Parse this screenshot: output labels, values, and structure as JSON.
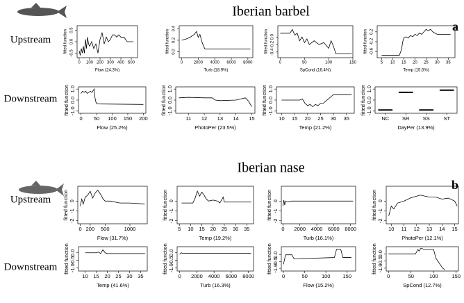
{
  "figures": [
    {
      "species": "Iberian barbel",
      "letter": "a",
      "rows": [
        "Upstream",
        "Downstream"
      ]
    },
    {
      "species": "Iberian nase",
      "letter": "b",
      "rows": [
        "Upstream",
        "Downstream"
      ]
    }
  ],
  "chart_data": [
    {
      "type": "line",
      "ylabel": "fitted function",
      "xlabel": "Flow (24.3%)",
      "xlim": [
        -20,
        560
      ],
      "xticks": [
        0,
        100,
        200,
        300,
        400,
        500
      ],
      "ylim": [
        -0.7,
        0.7
      ],
      "yticks": [
        -0.5,
        {
          "value": 0,
          "label": "0.0"
        },
        0.5
      ],
      "x": [
        0,
        10,
        20,
        30,
        40,
        50,
        60,
        70,
        80,
        90,
        100,
        120,
        140,
        160,
        180,
        200,
        220,
        240,
        260,
        280,
        300,
        320,
        340,
        360,
        380,
        400,
        430,
        460,
        520
      ],
      "values": [
        -0.4,
        -0.6,
        -0.3,
        -0.5,
        -0.2,
        -0.5,
        0.1,
        -0.3,
        0.2,
        -0.1,
        -0.2,
        0.0,
        -0.3,
        -0.1,
        -0.5,
        0.1,
        0.4,
        -0.1,
        0.2,
        0.0,
        0.1,
        0.3,
        0.3,
        0.2,
        0.3,
        0.2,
        0.2,
        0.0,
        0.0
      ]
    },
    {
      "type": "line",
      "ylabel": "fitted function",
      "xlabel": "Turb (18.9%)",
      "xlim": [
        -300,
        8600
      ],
      "xticks": [
        0,
        2000,
        4000,
        6000,
        8000
      ],
      "ylim": [
        -0.1,
        0.45
      ],
      "yticks": [
        {
          "value": 0,
          "label": "0.0"
        },
        0.2,
        0.4
      ],
      "x": [
        0,
        500,
        1000,
        1500,
        1800,
        2000,
        2200,
        2500,
        2800,
        8300
      ],
      "values": [
        0.2,
        0.22,
        0.25,
        0.3,
        0.35,
        0.25,
        0.3,
        0.15,
        0.05,
        0.05
      ]
    },
    {
      "type": "line",
      "ylabel": "fitted function",
      "xlabel": "SpCond (16.4%)",
      "xlim": [
        -5,
        150
      ],
      "xticks": [
        0,
        50,
        100,
        150
      ],
      "ylim": [
        -0.55,
        0.3
      ],
      "yticks": [
        -0.4,
        -0.2,
        {
          "value": 0,
          "label": "0.0"
        }
      ],
      "x": [
        0,
        20,
        25,
        30,
        35,
        40,
        45,
        50,
        55,
        60,
        70,
        80,
        90,
        100,
        105,
        110,
        115,
        148
      ],
      "values": [
        0.1,
        0.1,
        0.2,
        0.05,
        0.1,
        -0.1,
        0.0,
        -0.15,
        -0.05,
        -0.2,
        -0.1,
        -0.2,
        -0.15,
        -0.3,
        -0.1,
        -0.25,
        -0.45,
        -0.45
      ]
    },
    {
      "type": "line",
      "ylabel": "fitted function",
      "xlabel": "Temp (15.5%)",
      "xlim": [
        3,
        38
      ],
      "xticks": [
        5,
        10,
        15,
        20,
        25,
        30,
        35
      ],
      "ylim": [
        -0.85,
        0.45
      ],
      "yticks": [
        -0.6,
        -0.2,
        0.2
      ],
      "x": [
        5,
        13,
        14,
        14.5,
        15,
        16,
        17,
        18,
        19,
        20,
        21,
        22,
        23,
        24,
        25,
        26,
        27,
        28,
        29,
        30,
        36
      ],
      "values": [
        -0.75,
        -0.75,
        -0.5,
        -0.2,
        -0.05,
        0.0,
        -0.05,
        0.05,
        0.0,
        0.1,
        0.05,
        0.15,
        0.1,
        0.2,
        0.3,
        0.25,
        0.3,
        0.2,
        0.15,
        0.1,
        0.1
      ]
    },
    {
      "type": "line",
      "ylabel": "fitted function",
      "xlabel": "Flow (25.2%)",
      "xlim": [
        -8,
        208
      ],
      "xticks": [
        0,
        50,
        100,
        150,
        200
      ],
      "ylim": [
        -1.2,
        1.2
      ],
      "yticks": [
        {
          "value": -1,
          "label": "-1.0"
        },
        {
          "value": 0,
          "label": "0.0"
        },
        {
          "value": 1,
          "label": "1.0"
        }
      ],
      "x": [
        0,
        5,
        10,
        15,
        20,
        25,
        30,
        35,
        40,
        42,
        45,
        48,
        52,
        200
      ],
      "values": [
        0.6,
        0.8,
        0.7,
        0.8,
        0.6,
        0.7,
        0.8,
        0.7,
        0.9,
        1.0,
        0.2,
        -0.2,
        -0.35,
        -0.4
      ]
    },
    {
      "type": "line",
      "ylabel": "fitted function",
      "xlabel": "PhotoPer (23.5%)",
      "xlim": [
        10.2,
        15.2
      ],
      "xticks": [
        11,
        12,
        13,
        14,
        15
      ],
      "ylim": [
        -1.2,
        1.2
      ],
      "yticks": [
        {
          "value": -1,
          "label": "-1.0"
        },
        {
          "value": 0,
          "label": "0.0"
        },
        {
          "value": 1,
          "label": "1.0"
        }
      ],
      "x": [
        10.4,
        11,
        12,
        12.5,
        12.7,
        13,
        14,
        14.3,
        14.6,
        14.8,
        15
      ],
      "values": [
        0.2,
        0.25,
        0.2,
        0.2,
        0.0,
        -0.05,
        0.0,
        0.1,
        0.2,
        -0.1,
        -0.6
      ]
    },
    {
      "type": "line",
      "ylabel": "fitted function",
      "xlabel": "Temp (21.2%)",
      "xlim": [
        8,
        38
      ],
      "xticks": [
        10,
        15,
        20,
        25,
        30,
        35
      ],
      "ylim": [
        -1.2,
        1.2
      ],
      "yticks": [
        {
          "value": -1,
          "label": "-1.0"
        },
        {
          "value": 0,
          "label": "0.0"
        },
        {
          "value": 1,
          "label": "1.0"
        }
      ],
      "x": [
        10,
        17,
        18,
        19,
        20,
        21,
        22,
        23,
        24,
        25,
        26,
        27,
        28,
        29,
        30,
        37
      ],
      "values": [
        0,
        0,
        0.1,
        -0.3,
        -0.5,
        -0.4,
        -0.6,
        -0.4,
        -0.5,
        -0.3,
        -0.3,
        -0.1,
        0.1,
        0.3,
        0.5,
        0.5
      ]
    },
    {
      "type": "factor",
      "ylabel": "fitted function",
      "xlabel": "DayPer (13.9%)",
      "categories": [
        "NC",
        "SR",
        "SS",
        "ST"
      ],
      "values": [
        -0.9,
        0.7,
        -0.9,
        0.9
      ],
      "ylim": [
        -1.2,
        1.2
      ],
      "yticks": [
        {
          "value": -1,
          "label": "-1.0"
        },
        {
          "value": 0,
          "label": "0.0"
        },
        {
          "value": 1,
          "label": "1.0"
        }
      ]
    },
    {
      "type": "line",
      "ylabel": "fitted function",
      "xlabel": "Flow (31.7%)",
      "xlim": [
        -50,
        1350
      ],
      "xticks": [
        0,
        200,
        500,
        1000
      ],
      "ylim": [
        -2.3,
        1.5
      ],
      "yticks": [
        -2,
        -1,
        0
      ],
      "x": [
        0,
        30,
        60,
        100,
        150,
        200,
        250,
        300,
        350,
        380,
        420,
        460,
        500,
        600,
        800,
        1000,
        1300
      ],
      "values": [
        -0.5,
        0.2,
        -0.3,
        0.4,
        0.6,
        1.0,
        0.3,
        0.8,
        1.1,
        0.9,
        0.6,
        0.2,
        0.0,
        0.0,
        -0.2,
        -0.2,
        -0.3
      ]
    },
    {
      "type": "line",
      "ylabel": "fitted function",
      "xlabel": "Temp (19.2%)",
      "xlim": [
        4,
        38
      ],
      "xticks": [
        5,
        10,
        15,
        20,
        25,
        30,
        35
      ],
      "ylim": [
        -2.3,
        1.5
      ],
      "yticks": [
        -2,
        -1,
        0
      ],
      "x": [
        6,
        11,
        12,
        13,
        14,
        15,
        16,
        17,
        18,
        20,
        22,
        23,
        24,
        24.5,
        25,
        37
      ],
      "values": [
        -0.2,
        -0.2,
        0.3,
        1.0,
        0.5,
        0.9,
        0.6,
        0.2,
        0.0,
        0.1,
        0.0,
        -0.2,
        0.2,
        0.4,
        -0.1,
        -0.1
      ]
    },
    {
      "type": "line",
      "ylabel": "fitted function",
      "xlabel": "Turb (16.1%)",
      "xlim": [
        -200,
        8600
      ],
      "xticks": [
        0,
        2000,
        4000,
        6000,
        8000
      ],
      "ylim": [
        -2.3,
        1.5
      ],
      "yticks": [
        -2,
        -1,
        0
      ],
      "x": [
        0,
        100,
        200,
        300,
        500,
        1000,
        8300
      ],
      "values": [
        -0.5,
        0.1,
        -0.4,
        0.0,
        -0.1,
        0,
        0
      ]
    },
    {
      "type": "line",
      "ylabel": "fitted function",
      "xlabel": "PhotoPer (12.1%)",
      "xlim": [
        9.6,
        15.3
      ],
      "xticks": [
        10,
        11,
        12,
        13,
        14,
        15
      ],
      "ylim": [
        -2.3,
        1.5
      ],
      "yticks": [
        -2,
        -1,
        0
      ],
      "x": [
        9.8,
        10,
        10.2,
        10.5,
        11,
        11.5,
        12,
        12.3,
        13,
        13.5,
        14,
        14.5,
        15,
        15.2
      ],
      "values": [
        -1.5,
        -0.5,
        -0.8,
        -0.2,
        0,
        0.3,
        0.5,
        0.6,
        0.4,
        0.4,
        0.2,
        0.3,
        0,
        -0.5
      ]
    },
    {
      "type": "line",
      "ylabel": "fitted function",
      "xlabel": "Temp (41.6%)",
      "xlim": [
        7,
        38
      ],
      "xticks": [
        10,
        15,
        20,
        25,
        30,
        35
      ],
      "ylim": [
        -1.2,
        0.4
      ],
      "yticks": [
        {
          "value": -1,
          "label": "-1.0"
        },
        -0.5,
        {
          "value": 0,
          "label": "0.0"
        }
      ],
      "x": [
        10,
        15,
        16,
        17,
        18,
        19,
        20,
        37
      ],
      "values": [
        0,
        0,
        0.05,
        -0.05,
        0.2,
        0,
        -0.05,
        -0.05
      ]
    },
    {
      "type": "line",
      "ylabel": "fitted function",
      "xlabel": "Turb (16.3%)",
      "xlim": [
        -300,
        8600
      ],
      "xticks": [
        0,
        2000,
        4000,
        6000,
        8000
      ],
      "ylim": [
        -1.2,
        0.4
      ],
      "yticks": [
        {
          "value": -1,
          "label": "-1.0"
        },
        -0.5,
        {
          "value": 0,
          "label": "0.0"
        }
      ],
      "x": [
        0,
        200,
        400,
        600,
        8300
      ],
      "values": [
        -0.1,
        0,
        -0.05,
        -0.03,
        -0.03
      ]
    },
    {
      "type": "line",
      "ylabel": "fitted function",
      "xlabel": "Flow (15.2%)",
      "xlim": [
        -5,
        170
      ],
      "xticks": [
        0,
        50,
        100,
        150
      ],
      "ylim": [
        -1.2,
        0.6
      ],
      "yticks": [
        {
          "value": -1,
          "label": "-1.0"
        },
        -0.5,
        {
          "value": 0,
          "label": "0.0"
        }
      ],
      "x": [
        0,
        5,
        20,
        25,
        120,
        125,
        135,
        140,
        160
      ],
      "values": [
        -0.7,
        0,
        0,
        -0.3,
        -0.2,
        0.4,
        0.4,
        -0.2,
        -0.2
      ]
    },
    {
      "type": "line",
      "ylabel": "fitted function",
      "xlabel": "SpCond (12.7%)",
      "xlim": [
        -5,
        155
      ],
      "xticks": [
        0,
        50,
        100,
        150
      ],
      "ylim": [
        -1.2,
        0.5
      ],
      "yticks": [
        {
          "value": -1,
          "label": "-1.0"
        },
        -0.5,
        {
          "value": 0,
          "label": "0.0"
        }
      ],
      "x": [
        0,
        60,
        65,
        68,
        72,
        80,
        90,
        100,
        105,
        120,
        125
      ],
      "values": [
        0,
        0,
        0.3,
        0.2,
        0.4,
        0.3,
        0.3,
        0.3,
        -0.3,
        -1.0,
        -1.1
      ]
    }
  ]
}
